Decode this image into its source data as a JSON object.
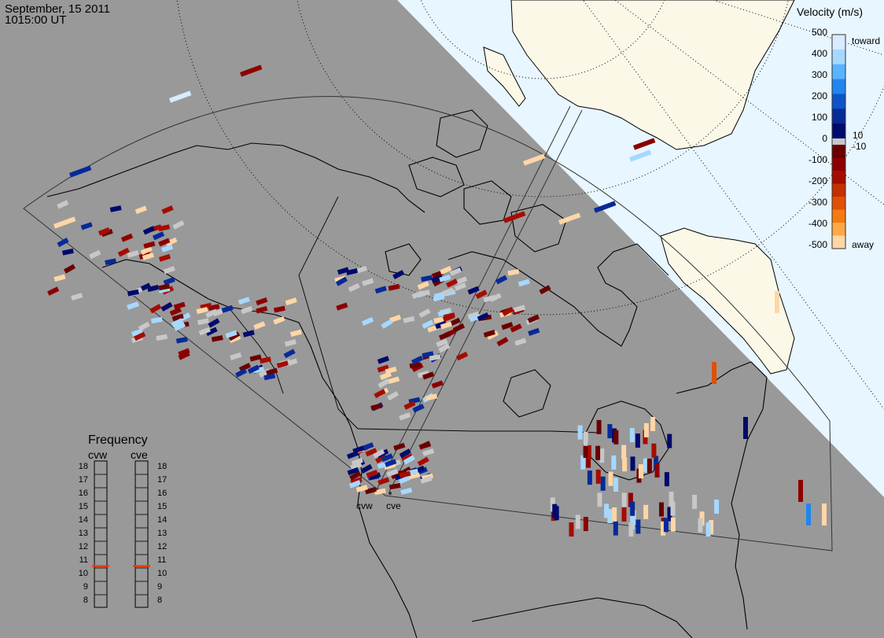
{
  "header": {
    "date": "September, 15 2011",
    "time": "1015:00 UT"
  },
  "velocity_legend": {
    "title": "Velocity (m/s)",
    "scale_labels": [
      "500",
      "400",
      "300",
      "200",
      "100",
      "0",
      "-100",
      "-200",
      "-300",
      "-400",
      "-500"
    ],
    "toward_label": "toward",
    "away_label": "away",
    "threshold_pos": "10",
    "threshold_neg": "-10",
    "colors_toward": [
      "#d8ecff",
      "#a6d8ff",
      "#58b4ff",
      "#1f86ee",
      "#0b55c8",
      "#062a98",
      "#000a6c"
    ],
    "colors_away": [
      "#6a0000",
      "#8c0000",
      "#a50c00",
      "#c43000",
      "#e05000",
      "#f57a10",
      "#ffa846",
      "#ffd6a6"
    ],
    "ground_scatter_color": "#c8c8c8"
  },
  "frequency_legend": {
    "title": "Frequency",
    "radars": [
      {
        "label": "cvw",
        "frequency_mhz": 10.6
      },
      {
        "label": "cve",
        "frequency_mhz": 10.6
      }
    ],
    "scale": [
      "18",
      "17",
      "16",
      "15",
      "14",
      "13",
      "12",
      "11",
      "10",
      "9",
      "8"
    ],
    "marker_color": "#e04010"
  },
  "radars": {
    "west_label": "cvw",
    "east_label": "cve"
  },
  "map_colors": {
    "night": "#999999",
    "day_ocean": "#e8f6ff",
    "day_land": "#fcf8e8",
    "coast": "#000000"
  }
}
